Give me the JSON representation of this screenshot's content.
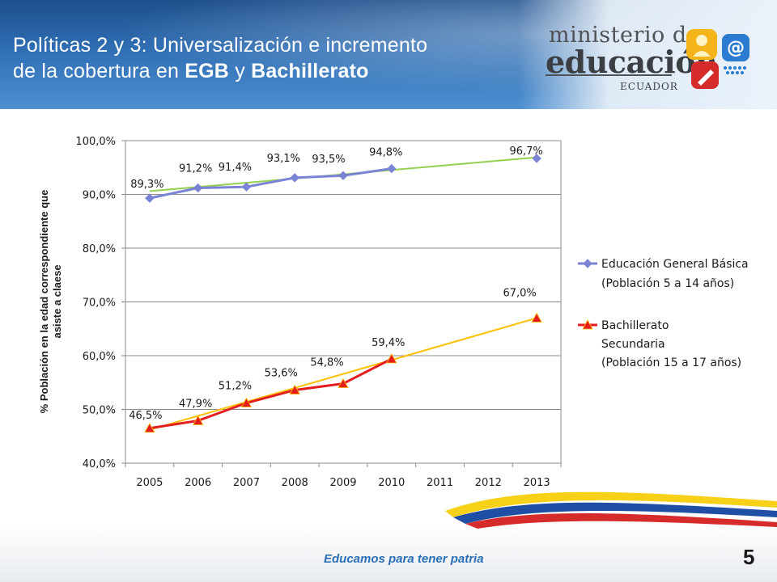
{
  "slide": {
    "title_part1": "Políticas 2 y 3:  Universalización  e incremento",
    "title_part2": "de la cobertura en ",
    "title_bold1": "EGB",
    "title_part3": " y ",
    "title_bold2": "Bachillerato",
    "number": "5",
    "tagline": "Educamos para tener patria"
  },
  "logo": {
    "line1": "ministerio de",
    "line2": "educación",
    "line3": "ECUADOR"
  },
  "chart_data": {
    "type": "line",
    "categories": [
      "2005",
      "2006",
      "2007",
      "2008",
      "2009",
      "2010",
      "2011",
      "2012",
      "2013"
    ],
    "ylabel": "% Población en la edad correspondiente que asiste a claese",
    "ylim": [
      40,
      100
    ],
    "yticks": [
      "40,0%",
      "50,0%",
      "60,0%",
      "70,0%",
      "80,0%",
      "90,0%",
      "100,0%"
    ],
    "grid": "horizontal",
    "legend_position": "right",
    "series": [
      {
        "name": "Educación General Básica",
        "name_line2": "(Población 5 a 14 años)",
        "values": [
          89.3,
          91.2,
          91.4,
          93.1,
          93.5,
          94.8,
          null,
          null,
          96.7
        ],
        "labels": [
          "89,3%",
          "91,2%",
          "91,4%",
          "93,1%",
          "93,5%",
          "94,8%",
          "",
          "",
          "96,7%"
        ],
        "color": "#7b83d4",
        "marker": "diamond",
        "trend": [
          90.6,
          96.9
        ],
        "trend_color": "#92d050"
      },
      {
        "name": "Bachillerato",
        "name_line2": "Secundaria",
        "name_line3": "(Población 15 a 17 años)",
        "values": [
          46.5,
          47.9,
          51.2,
          53.6,
          54.8,
          59.4,
          null,
          null,
          67.0
        ],
        "labels": [
          "46,5%",
          "47,9%",
          "51,2%",
          "53,6%",
          "54,8%",
          "59,4%",
          "",
          "",
          "67,0%"
        ],
        "color": "#e41e1e",
        "marker": "triangle",
        "trend": [
          46.2,
          67.0
        ],
        "trend_color": "#ffc000"
      }
    ]
  }
}
